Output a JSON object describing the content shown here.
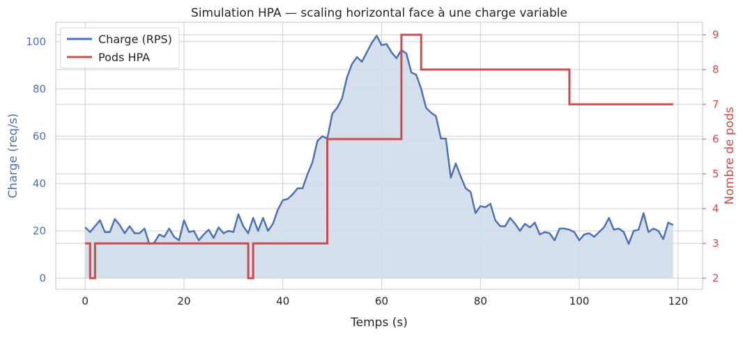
{
  "chart_data": {
    "type": "line",
    "title": "Simulation HPA — scaling horizontal face à une charge variable",
    "xlabel": "Temps (s)",
    "ylabel": "Charge (req/s)",
    "y2label": "Nombre de pods",
    "xlim": [
      -5.95,
      124.95
    ],
    "ylim": [
      -4.7,
      108.2
    ],
    "y2lim": [
      1.68,
      9.36
    ],
    "xticks": [
      0,
      20,
      40,
      60,
      80,
      100,
      120
    ],
    "yticks": [
      0,
      20,
      40,
      60,
      80,
      100
    ],
    "y2ticks": [
      2,
      3,
      4,
      5,
      6,
      7,
      8,
      9
    ],
    "grid": true,
    "legend_position": "top-left",
    "colors": {
      "load": "#4c72b0",
      "load_fill": "#d2dbea",
      "pods": "#c44e52",
      "grid": "#cccccc",
      "text": "#262626"
    },
    "x": [
      0,
      1,
      2,
      3,
      4,
      5,
      6,
      7,
      8,
      9,
      10,
      11,
      12,
      13,
      14,
      15,
      16,
      17,
      18,
      19,
      20,
      21,
      22,
      23,
      24,
      25,
      26,
      27,
      28,
      29,
      30,
      31,
      32,
      33,
      34,
      35,
      36,
      37,
      38,
      39,
      40,
      41,
      42,
      43,
      44,
      45,
      46,
      47,
      48,
      49,
      50,
      51,
      52,
      53,
      54,
      55,
      56,
      57,
      58,
      59,
      60,
      61,
      62,
      63,
      64,
      65,
      66,
      67,
      68,
      69,
      70,
      71,
      72,
      73,
      74,
      75,
      76,
      77,
      78,
      79,
      80,
      81,
      82,
      83,
      84,
      85,
      86,
      87,
      88,
      89,
      90,
      91,
      92,
      93,
      94,
      95,
      96,
      97,
      98,
      99,
      100,
      101,
      102,
      103,
      104,
      105,
      106,
      107,
      108,
      109,
      110,
      111,
      112,
      113,
      114,
      115,
      116,
      117,
      118,
      119
    ],
    "series": [
      {
        "name": "Charge (RPS)",
        "axis": "left",
        "style": "line+fill",
        "values": [
          21.5,
          19.5,
          22,
          24.5,
          19.5,
          19.5,
          25,
          22.5,
          19,
          22,
          19,
          19,
          21,
          14.5,
          15,
          18.5,
          17.5,
          21,
          17.5,
          16,
          24.5,
          19.5,
          20,
          16,
          18.5,
          20.5,
          17,
          21.5,
          19,
          20,
          19.5,
          27,
          22,
          19,
          25.5,
          20,
          25.5,
          20,
          23,
          29,
          33,
          33.5,
          35.5,
          38,
          38,
          44,
          49,
          58,
          60,
          59,
          69.5,
          72,
          76,
          85,
          90.5,
          93.5,
          91.5,
          95.5,
          99.5,
          102.5,
          98.5,
          99,
          95.5,
          93,
          96.5,
          95,
          87,
          86,
          80,
          72,
          70,
          68.5,
          59,
          59,
          42.5,
          48.5,
          43,
          38,
          36.5,
          27.5,
          30.5,
          30,
          31.5,
          24.5,
          22,
          22,
          25.5,
          23,
          20,
          23,
          21.5,
          23.5,
          18.5,
          19.5,
          19,
          16,
          21,
          21,
          20.5,
          19.5,
          16,
          18.5,
          19,
          17.5,
          19.5,
          21.5,
          25.5,
          20.5,
          21,
          19.5,
          14.5,
          20,
          20.5,
          27.5,
          19.5,
          21,
          20,
          16.5,
          23.5,
          22.5
        ]
      },
      {
        "name": "Pods HPA",
        "axis": "right",
        "style": "step-post",
        "values": [
          3,
          2,
          3,
          3,
          3,
          3,
          3,
          3,
          3,
          3,
          3,
          3,
          3,
          3,
          3,
          3,
          3,
          3,
          3,
          3,
          3,
          3,
          3,
          3,
          3,
          3,
          3,
          3,
          3,
          3,
          3,
          3,
          3,
          2,
          3,
          3,
          3,
          3,
          3,
          3,
          3,
          3,
          3,
          3,
          3,
          3,
          3,
          3,
          3,
          6,
          6,
          6,
          6,
          6,
          6,
          6,
          6,
          6,
          6,
          6,
          6,
          6,
          6,
          6,
          9,
          9,
          9,
          9,
          8,
          8,
          8,
          8,
          8,
          8,
          8,
          8,
          8,
          8,
          8,
          8,
          8,
          8,
          8,
          8,
          8,
          8,
          8,
          8,
          8,
          8,
          8,
          8,
          8,
          8,
          8,
          8,
          8,
          8,
          7,
          7,
          7,
          7,
          7,
          7,
          7,
          7,
          7,
          7,
          7,
          7,
          7,
          7,
          7,
          7,
          7,
          7,
          7,
          7,
          7,
          7
        ]
      }
    ]
  }
}
